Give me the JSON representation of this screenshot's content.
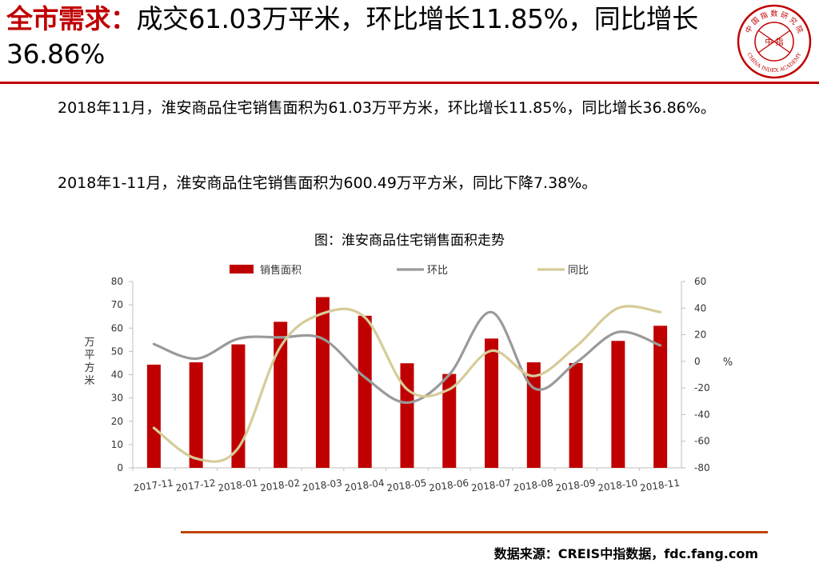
{
  "header": {
    "title_key": "全市需求：",
    "title_rest": "成交61.03万平米，环比增长11.85%，同比增长36.86%",
    "logo": {
      "icon": "china-index-academy-seal",
      "top_text": "中 国 指 数 研 究 院",
      "center_text": "中 指",
      "bottom_text": "CHINA INDEX ACADEMY"
    }
  },
  "body": {
    "paragraph_1": "2018年11月，淮安商品住宅销售面积为61.03万平方米，环比增长11.85%，同比增长36.86%。",
    "paragraph_2": "2018年1-11月，淮安商品住宅销售面积为600.49万平方米，同比下降7.38%。"
  },
  "chart_data": {
    "type": "bar+line",
    "title": "图：淮安商品住宅销售面积走势",
    "categories": [
      "2017-11",
      "2017-12",
      "2018-01",
      "2018-02",
      "2018-03",
      "2018-04",
      "2018-05",
      "2018-06",
      "2018-07",
      "2018-08",
      "2018-09",
      "2018-10",
      "2018-11"
    ],
    "series": [
      {
        "name": "销售面积",
        "kind": "bar",
        "axis": "left",
        "color": "#c00000",
        "values": [
          44.3,
          45.3,
          53.0,
          62.7,
          73.3,
          65.3,
          44.9,
          40.3,
          55.5,
          45.3,
          45.0,
          54.5,
          61.0
        ]
      },
      {
        "name": "环比",
        "kind": "line",
        "axis": "right",
        "color": "#9a9a9a",
        "values": [
          13,
          2,
          17,
          18,
          17,
          -12,
          -31,
          -10,
          37,
          -20,
          -1,
          22,
          12
        ]
      },
      {
        "name": "同比",
        "kind": "line",
        "axis": "right",
        "color": "#d6cc99",
        "values": [
          -50,
          -73,
          -65,
          11,
          36,
          33,
          -21,
          -21,
          8,
          -11,
          11,
          40,
          37
        ]
      }
    ],
    "ylabel_left": "万平方米",
    "ylabel_right": "%",
    "ylim_left": [
      0,
      80
    ],
    "yticks_left": [
      "0",
      "10",
      "20",
      "30",
      "40",
      "50",
      "60",
      "70",
      "80"
    ],
    "ylim_right": [
      -80,
      60
    ],
    "yticks_right": [
      "-80",
      "-60",
      "-40",
      "-20",
      "0",
      "20",
      "40",
      "60"
    ],
    "legend": "top-center",
    "grid": false
  },
  "footer": {
    "source": "数据来源：CREIS中指数据，fdc.fang.com"
  },
  "colors": {
    "accent": "#c00000",
    "source_rule": "#c0440a"
  }
}
